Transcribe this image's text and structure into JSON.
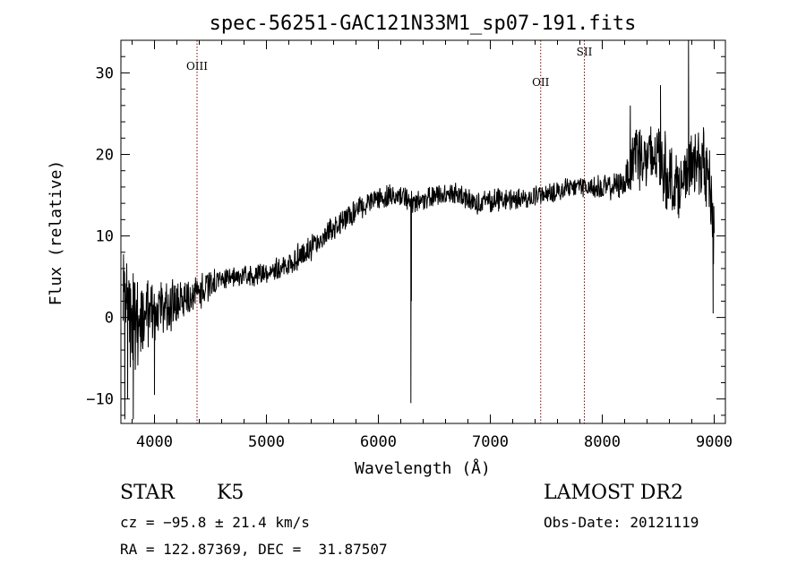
{
  "chart_data": {
    "type": "line",
    "title": "spec-56251-GAC121N33M1_sp07-191.fits",
    "xlabel": "Wavelength (Å)",
    "ylabel": "Flux (relative)",
    "xlim": [
      3700,
      9100
    ],
    "ylim": [
      -13,
      34
    ],
    "xticks": [
      "4000",
      "5000",
      "6000",
      "7000",
      "8000",
      "9000"
    ],
    "yticks": [
      "−10",
      "0",
      "10",
      "20",
      "30"
    ],
    "line_color": "#000000",
    "marker_color": "#8b0000",
    "lines": [
      {
        "label": "OIII",
        "x": 4380
      },
      {
        "label": "OII",
        "x": 7450
      },
      {
        "label": "SII",
        "x": 7840
      }
    ],
    "spectrum_anchors": [
      [
        3720,
        2
      ],
      [
        3800,
        -1
      ],
      [
        3900,
        0
      ],
      [
        4000,
        1
      ],
      [
        4100,
        1.5
      ],
      [
        4200,
        2
      ],
      [
        4300,
        2.5
      ],
      [
        4400,
        3
      ],
      [
        4500,
        4
      ],
      [
        4600,
        4.8
      ],
      [
        4700,
        5
      ],
      [
        4800,
        5
      ],
      [
        4900,
        5.3
      ],
      [
        5000,
        5.5
      ],
      [
        5100,
        6
      ],
      [
        5200,
        6.5
      ],
      [
        5300,
        7.5
      ],
      [
        5400,
        8.5
      ],
      [
        5500,
        10
      ],
      [
        5600,
        11
      ],
      [
        5700,
        12
      ],
      [
        5800,
        13
      ],
      [
        5900,
        14
      ],
      [
        6000,
        14.5
      ],
      [
        6100,
        14.8
      ],
      [
        6200,
        15
      ],
      [
        6300,
        14
      ],
      [
        6400,
        14.5
      ],
      [
        6500,
        15
      ],
      [
        6600,
        15
      ],
      [
        6700,
        15.2
      ],
      [
        6800,
        14.5
      ],
      [
        6900,
        14
      ],
      [
        7000,
        14.2
      ],
      [
        7100,
        14.5
      ],
      [
        7200,
        14.5
      ],
      [
        7300,
        14.5
      ],
      [
        7400,
        15
      ],
      [
        7500,
        15
      ],
      [
        7600,
        15.5
      ],
      [
        7700,
        16
      ],
      [
        7800,
        16
      ],
      [
        7900,
        16
      ],
      [
        8000,
        16
      ],
      [
        8100,
        16
      ],
      [
        8200,
        16.5
      ],
      [
        8300,
        21
      ],
      [
        8400,
        19
      ],
      [
        8500,
        20
      ],
      [
        8600,
        17
      ],
      [
        8700,
        16
      ],
      [
        8800,
        19
      ],
      [
        8900,
        19
      ],
      [
        8960,
        16
      ],
      [
        9000,
        10
      ]
    ],
    "spikes": [
      {
        "x": 6290,
        "y": -10.5
      },
      {
        "x": 6295,
        "y": 2
      },
      {
        "x": 8770,
        "y": 34
      },
      {
        "x": 8775,
        "y": 15
      },
      {
        "x": 3735,
        "y": -12.5
      },
      {
        "x": 3760,
        "y": -10
      },
      {
        "x": 3810,
        "y": -12.5
      },
      {
        "x": 4000,
        "y": -9.5
      },
      {
        "x": 8250,
        "y": 26
      },
      {
        "x": 8520,
        "y": 28.5
      },
      {
        "x": 8990,
        "y": 0.5
      }
    ],
    "noise_profile": [
      [
        3700,
        6
      ],
      [
        4000,
        3.5
      ],
      [
        4300,
        2
      ],
      [
        4700,
        1
      ],
      [
        5300,
        1.5
      ],
      [
        6000,
        1.2
      ],
      [
        7000,
        1.2
      ],
      [
        7800,
        1
      ],
      [
        8200,
        1.5
      ],
      [
        8300,
        4
      ],
      [
        8600,
        4
      ],
      [
        8700,
        3
      ],
      [
        9000,
        4
      ]
    ]
  },
  "info": {
    "object_class": "STAR",
    "subclass": "K5",
    "redshift": "cz = −95.8 ± 21.4 km/s",
    "coords": "RA = 122.87369, DEC =  31.87507",
    "survey": "LAMOST DR2",
    "obs_date": "Obs-Date: 20121119"
  }
}
